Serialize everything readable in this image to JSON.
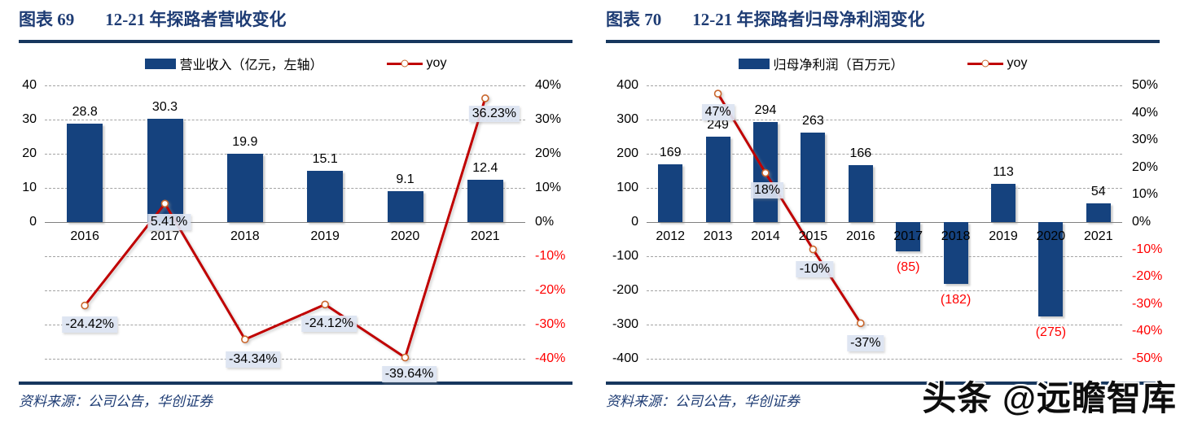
{
  "watermark": "头条 @远瞻智库",
  "colors": {
    "bar": "#15427E",
    "line": "#C00000",
    "marker_stroke": "#C9662C",
    "navy_title": "#1E3C74",
    "rule": "#17375E",
    "label_background": "#DBE3F1",
    "negative_text": "#FF0000",
    "grid": "#A3A3A3",
    "zero_line": "#808080"
  },
  "charts": [
    {
      "figure_label": "图表  69",
      "title": "12-21 年探路者营收变化",
      "source": "资料来源：公司公告，华创证券",
      "legend": {
        "bar_label": "营业收入（亿元，左轴）",
        "line_label": "yoy"
      },
      "chart_data": {
        "type": "bar+line",
        "legend_position": "top",
        "grid": "horizontal-dashed",
        "categories": [
          "2016",
          "2017",
          "2018",
          "2019",
          "2020",
          "2021"
        ],
        "series": [
          {
            "name": "营业收入（亿元，左轴）",
            "type": "bar",
            "axis": "left",
            "values": [
              28.8,
              30.3,
              19.9,
              15.1,
              9.1,
              12.4
            ],
            "labels": [
              "28.8",
              "30.3",
              "19.9",
              "15.1",
              "9.1",
              "12.4"
            ]
          },
          {
            "name": "yoy",
            "type": "line",
            "axis": "right",
            "values": [
              -24.42,
              5.41,
              -34.34,
              -24.12,
              -39.64,
              36.23
            ],
            "labels": [
              "-24.42%",
              "5.41%",
              "-34.34%",
              "-24.12%",
              "-39.64%",
              "36.23%"
            ]
          }
        ],
        "left_axis": {
          "min": -40,
          "max": 40,
          "grid_step": 10,
          "tick_labels": [
            {
              "value": 40,
              "text": "40"
            },
            {
              "value": 30,
              "text": "30"
            },
            {
              "value": 20,
              "text": "20"
            },
            {
              "value": 10,
              "text": "10"
            },
            {
              "value": 0,
              "text": "0"
            }
          ]
        },
        "right_axis": {
          "min": -40,
          "max": 40,
          "tick_labels": [
            {
              "value": 40,
              "text": "40%"
            },
            {
              "value": 30,
              "text": "30%"
            },
            {
              "value": 20,
              "text": "20%"
            },
            {
              "value": 10,
              "text": "10%"
            },
            {
              "value": 0,
              "text": "0%"
            },
            {
              "value": -10,
              "text": "-10%"
            },
            {
              "value": -20,
              "text": "-20%"
            },
            {
              "value": -30,
              "text": "-30%"
            },
            {
              "value": -40,
              "text": "-40%"
            }
          ]
        }
      }
    },
    {
      "figure_label": "图表  70",
      "title": "12-21 年探路者归母净利润变化",
      "source": "资料来源：公司公告，华创证券",
      "legend": {
        "bar_label": "归母净利润（百万元）",
        "line_label": "yoy"
      },
      "chart_data": {
        "type": "bar+line",
        "legend_position": "top",
        "grid": "horizontal-dashed",
        "categories": [
          "2012",
          "2013",
          "2014",
          "2015",
          "2016",
          "2017",
          "2018",
          "2019",
          "2020",
          "2021"
        ],
        "series": [
          {
            "name": "归母净利润（百万元）",
            "type": "bar",
            "axis": "left",
            "values": [
              169,
              249,
              294,
              263,
              166,
              -85,
              -182,
              113,
              -275,
              54
            ],
            "labels": [
              "169",
              "249",
              "294",
              "263",
              "166",
              "(85)",
              "(182)",
              "113",
              "(275)",
              "54"
            ]
          },
          {
            "name": "yoy",
            "type": "line",
            "axis": "right",
            "values": [
              null,
              47,
              18,
              -10,
              -37,
              null,
              null,
              null,
              null,
              null
            ],
            "labels": [
              null,
              "47%",
              "18%",
              "-10%",
              "-37%",
              null,
              null,
              null,
              null,
              null
            ]
          }
        ],
        "left_axis": {
          "min": -400,
          "max": 400,
          "grid_step": 100,
          "tick_labels": [
            {
              "value": 400,
              "text": "400"
            },
            {
              "value": 300,
              "text": "300"
            },
            {
              "value": 200,
              "text": "200"
            },
            {
              "value": 100,
              "text": "100"
            },
            {
              "value": 0,
              "text": "0"
            },
            {
              "value": -100,
              "text": "-100"
            },
            {
              "value": -200,
              "text": "-200"
            },
            {
              "value": -300,
              "text": "-300"
            },
            {
              "value": -400,
              "text": "-400"
            }
          ]
        },
        "right_axis": {
          "min": -50,
          "max": 50,
          "tick_labels": [
            {
              "value": 50,
              "text": "50%"
            },
            {
              "value": 40,
              "text": "40%"
            },
            {
              "value": 30,
              "text": "30%"
            },
            {
              "value": 20,
              "text": "20%"
            },
            {
              "value": 10,
              "text": "10%"
            },
            {
              "value": 0,
              "text": "0%"
            },
            {
              "value": -10,
              "text": "-10%"
            },
            {
              "value": -20,
              "text": "-20%"
            },
            {
              "value": -30,
              "text": "-30%"
            },
            {
              "value": -40,
              "text": "-40%"
            },
            {
              "value": -50,
              "text": "-50%"
            }
          ]
        }
      }
    }
  ]
}
